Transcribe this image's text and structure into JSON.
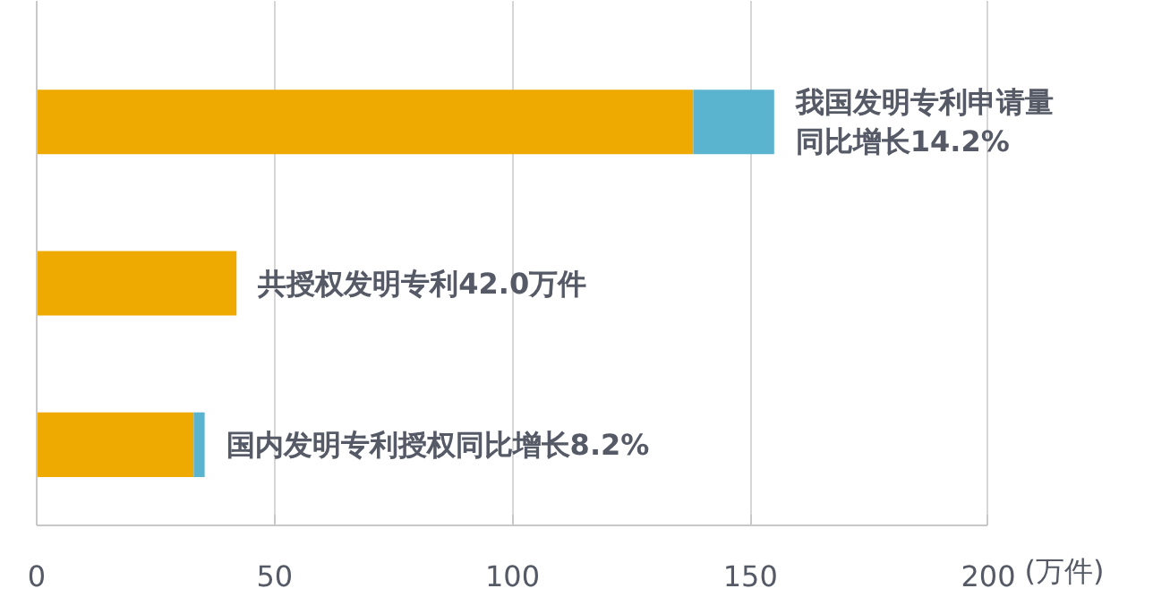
{
  "chart_data": {
    "type": "bar",
    "orientation": "horizontal",
    "stacked": true,
    "categories": [
      null,
      null,
      null
    ],
    "series": [
      {
        "color": "#eeaa00",
        "values": [
          138,
          42,
          33
        ]
      },
      {
        "color": "#5ab4cf",
        "values": [
          17,
          null,
          2.3
        ]
      }
    ],
    "xlim": [
      0,
      200
    ],
    "xticks": [
      0,
      50,
      100,
      150,
      200
    ],
    "xlabel": "(万件)",
    "grid": "x",
    "annotations": [
      {
        "text": "我国发明专利申请量",
        "x": 155
      },
      {
        "text": "同比增长14.2%",
        "x": 155
      },
      {
        "text": "共授权发明专利42.0万件",
        "x": 42
      },
      {
        "text": "国内发明专利授权同比增长8.2%",
        "x": 35.3
      }
    ]
  }
}
